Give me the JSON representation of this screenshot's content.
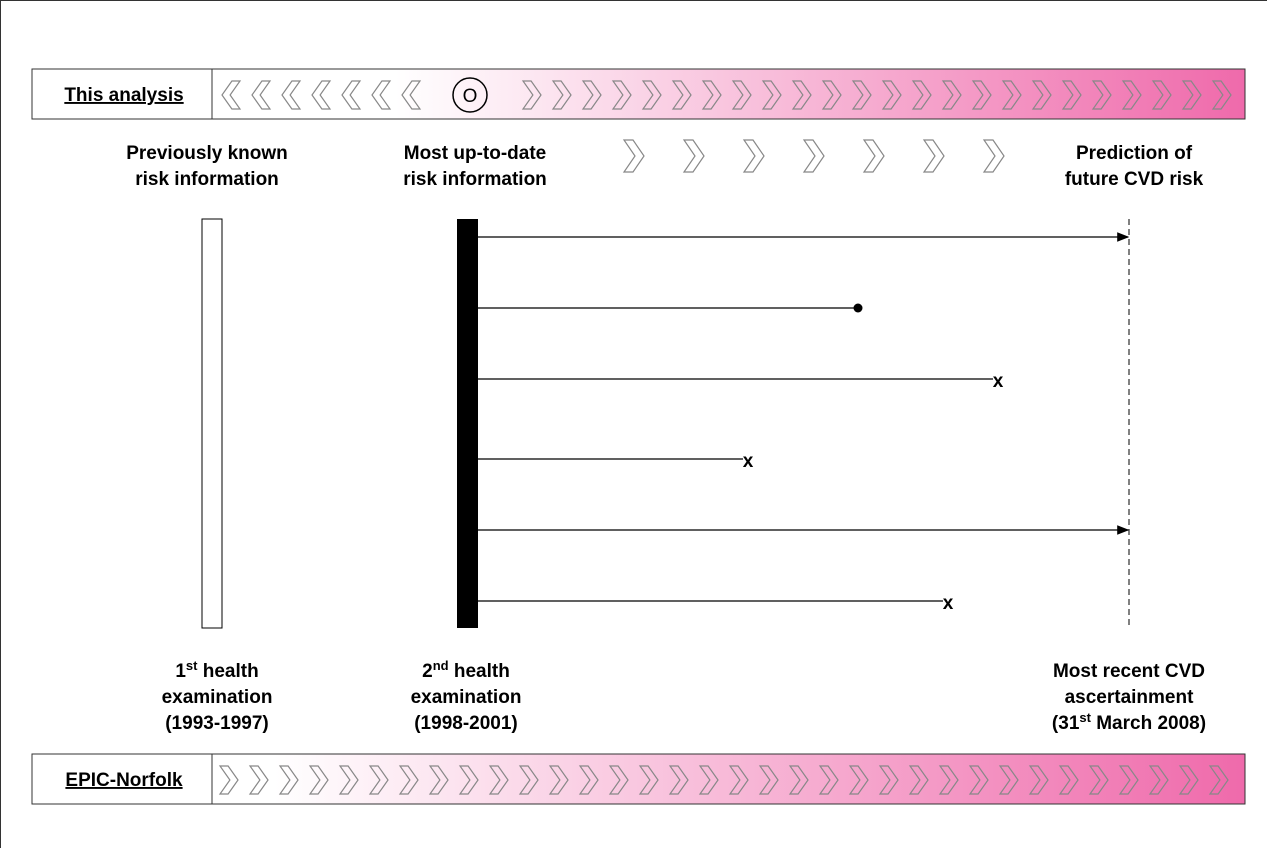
{
  "top_bar": {
    "label": "This analysis",
    "symbol": "O"
  },
  "headers": {
    "previous": [
      "Previously known",
      "risk information"
    ],
    "current": [
      "Most up-to-date",
      "risk information"
    ],
    "prediction": [
      "Prediction of",
      "future CVD risk"
    ]
  },
  "bottom_labels": {
    "first": {
      "pre": "1",
      "sup": "st",
      "post": " health",
      "line2": "examination",
      "line3": "(1993-1997)"
    },
    "second": {
      "pre": "2",
      "sup": "nd",
      "post": " health",
      "line2": "examination",
      "line3": "(1998-2001)"
    },
    "recent": {
      "line1": "Most recent CVD",
      "line2": "ascertainment",
      "pre": "(31",
      "sup": "st",
      "post": " March 2008)"
    }
  },
  "censor_mark": "x",
  "bottom_bar": {
    "label": "EPIC-Norfolk"
  }
}
